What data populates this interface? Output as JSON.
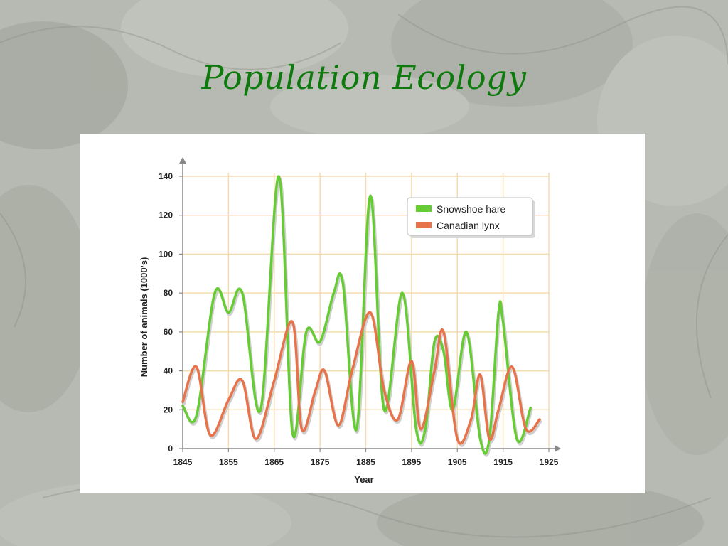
{
  "slide": {
    "title": "Population Ecology"
  },
  "colors": {
    "title": "#0e7a0e",
    "hare": "#66cc33",
    "lynx": "#e8734a",
    "grid": "#f5dcb0",
    "axis": "#888888"
  },
  "chart_data": {
    "type": "line",
    "title": "",
    "xlabel": "Year",
    "ylabel": "Number of animals (1000's)",
    "xlim": [
      1845,
      1925
    ],
    "ylim": [
      0,
      140
    ],
    "x_ticks": [
      1845,
      1855,
      1865,
      1875,
      1885,
      1895,
      1905,
      1915,
      1925
    ],
    "y_ticks": [
      0,
      20,
      40,
      60,
      80,
      100,
      120,
      140
    ],
    "grid": true,
    "legend_position": "top-right",
    "series": [
      {
        "name": "Snowshoe hare",
        "color": "#66cc33",
        "x": [
          1845,
          1848,
          1852,
          1855,
          1858,
          1862,
          1866,
          1869,
          1872,
          1875,
          1878,
          1880,
          1883,
          1886,
          1889,
          1893,
          1896,
          1898,
          1900,
          1902,
          1904,
          1907,
          1910,
          1912,
          1914,
          1915,
          1918,
          1921
        ],
        "values": [
          22,
          17,
          80,
          70,
          80,
          20,
          140,
          8,
          60,
          55,
          80,
          85,
          10,
          130,
          20,
          80,
          10,
          10,
          55,
          50,
          20,
          60,
          5,
          5,
          70,
          65,
          5,
          21
        ]
      },
      {
        "name": "Canadian lynx",
        "color": "#e8734a",
        "x": [
          1845,
          1848,
          1851,
          1855,
          1858,
          1861,
          1865,
          1869,
          1871,
          1874,
          1876,
          1879,
          1882,
          1886,
          1889,
          1892,
          1895,
          1897,
          1900,
          1902,
          1905,
          1908,
          1910,
          1912,
          1914,
          1917,
          1920,
          1923
        ],
        "values": [
          24,
          42,
          7,
          25,
          35,
          5,
          35,
          65,
          10,
          30,
          40,
          12,
          40,
          70,
          30,
          15,
          45,
          10,
          40,
          60,
          5,
          15,
          38,
          5,
          20,
          42,
          10,
          15
        ]
      }
    ]
  }
}
